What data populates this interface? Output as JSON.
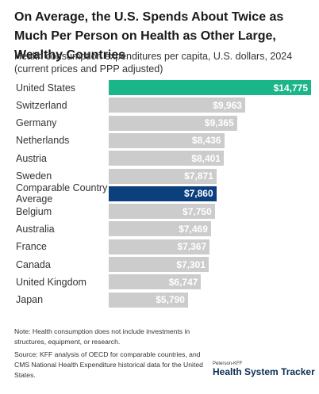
{
  "chart_data": {
    "type": "bar",
    "orientation": "horizontal",
    "title": "On Average, the U.S. Spends About Twice as Much Per Person on Health as Other Large, Wealthy Countries",
    "subtitle": "Health consumption expenditures per capita, U.S. dollars, 2024 (current prices and PPP adjusted)",
    "categories": [
      "United States",
      "Switzerland",
      "Germany",
      "Netherlands",
      "Austria",
      "Sweden",
      "Comparable Country Average",
      "Belgium",
      "Australia",
      "France",
      "Canada",
      "United Kingdom",
      "Japan"
    ],
    "values": [
      14775,
      9963,
      9365,
      8436,
      8401,
      7871,
      7860,
      7750,
      7469,
      7367,
      7301,
      6747,
      5790
    ],
    "value_labels": [
      "$14,775",
      "$9,963",
      "$9,365",
      "$8,436",
      "$8,401",
      "$7,871",
      "$7,860",
      "$7,750",
      "$7,469",
      "$7,367",
      "$7,301",
      "$6,747",
      "$5,790"
    ],
    "colors": [
      "#1bb58a",
      "#cccccc",
      "#cccccc",
      "#cccccc",
      "#cccccc",
      "#cccccc",
      "#0b3f7e",
      "#cccccc",
      "#cccccc",
      "#cccccc",
      "#cccccc",
      "#cccccc",
      "#cccccc"
    ],
    "note": "Note: Health consumption does not include investments in structures, equipment, or research.",
    "source": "Source: KFF analysis of OECD for comparable countries, and CMS National Health Expenditure historical data for the United States.",
    "logo_small": "Peterson-KFF",
    "logo_main": "Health System Tracker"
  }
}
